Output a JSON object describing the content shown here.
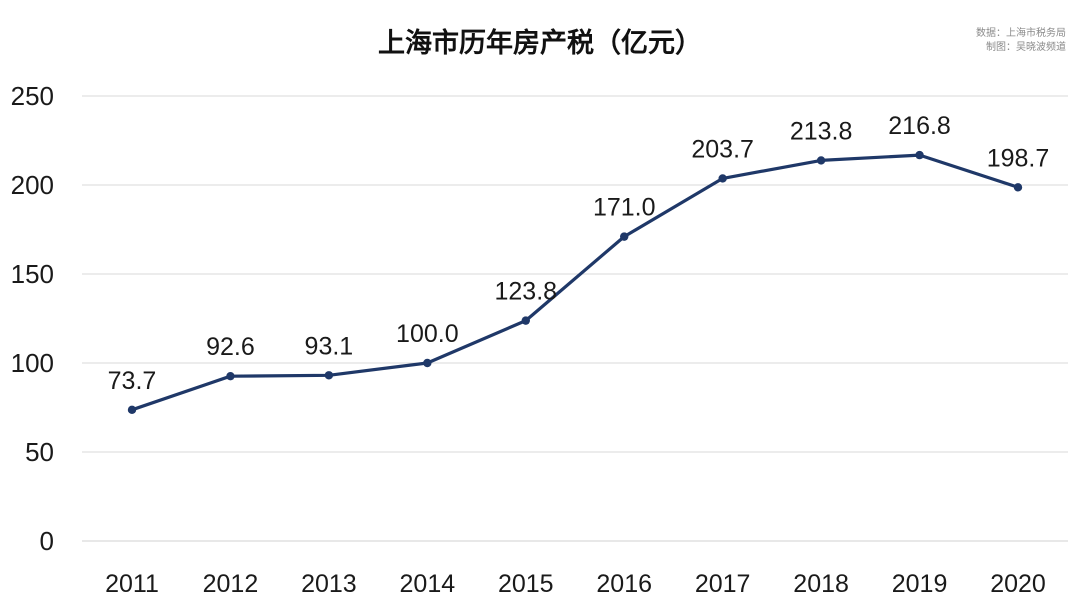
{
  "colors": {
    "line": "#1f3868",
    "grid": "#d9d9d9",
    "text": "#1a1a1a"
  },
  "chart_data": {
    "type": "line",
    "title": "上海市历年房产税（亿元）",
    "source_lines": [
      "数据：上海市税务局",
      "制图：吴晓波频道"
    ],
    "categories": [
      "2011",
      "2012",
      "2013",
      "2014",
      "2015",
      "2016",
      "2017",
      "2018",
      "2019",
      "2020"
    ],
    "series": [
      {
        "values": [
          73.7,
          92.6,
          93.1,
          100.0,
          123.8,
          171.0,
          203.7,
          213.8,
          216.8,
          198.7
        ],
        "labels": [
          "73.7",
          "92.6",
          "93.1",
          "100.0",
          "123.8",
          "171.0",
          "203.7",
          "213.8",
          "216.8",
          "198.7"
        ]
      }
    ],
    "ylim": [
      0,
      250
    ],
    "yticks": [
      "0",
      "50",
      "100",
      "150",
      "200",
      "250"
    ],
    "xlabel": "",
    "ylabel": "",
    "grid": true,
    "legend": "none"
  }
}
